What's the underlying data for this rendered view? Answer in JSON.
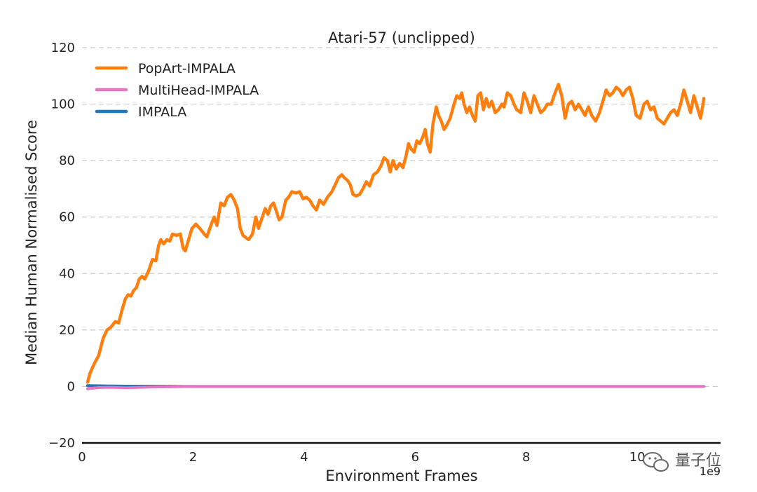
{
  "chart_data": {
    "type": "line",
    "title": "Atari-57 (unclipped)",
    "xlabel": "Environment Frames",
    "ylabel": "Median Human Normalised Score",
    "x_offset_label": "1e9",
    "xlim": [
      0,
      11.5
    ],
    "ylim": [
      -20,
      120
    ],
    "x_ticks": [
      0,
      2,
      4,
      6,
      8,
      10
    ],
    "x_tick_labels": [
      "0",
      "2",
      "4",
      "6",
      "8",
      "10"
    ],
    "y_ticks": [
      -20,
      0,
      20,
      40,
      60,
      80,
      100,
      120
    ],
    "y_tick_labels": [
      "−20",
      "0",
      "20",
      "40",
      "60",
      "80",
      "100",
      "120"
    ],
    "grid": "horizontal dashed",
    "legend_position": "top-left",
    "series": [
      {
        "name": "PopArt-IMPALA",
        "color": "#ff7f0e",
        "points": [
          [
            0.1,
            1.5
          ],
          [
            0.15,
            5
          ],
          [
            0.22,
            8
          ],
          [
            0.3,
            11
          ],
          [
            0.38,
            17
          ],
          [
            0.45,
            20
          ],
          [
            0.52,
            21
          ],
          [
            0.6,
            23
          ],
          [
            0.66,
            22.5
          ],
          [
            0.72,
            27
          ],
          [
            0.78,
            31
          ],
          [
            0.83,
            32.5
          ],
          [
            0.88,
            32
          ],
          [
            0.93,
            34
          ],
          [
            0.98,
            35
          ],
          [
            1.03,
            38
          ],
          [
            1.08,
            39
          ],
          [
            1.13,
            38
          ],
          [
            1.2,
            41
          ],
          [
            1.27,
            45
          ],
          [
            1.33,
            44.5
          ],
          [
            1.38,
            50
          ],
          [
            1.42,
            52
          ],
          [
            1.47,
            50.5
          ],
          [
            1.53,
            52
          ],
          [
            1.58,
            51.5
          ],
          [
            1.63,
            54
          ],
          [
            1.7,
            53.5
          ],
          [
            1.77,
            54
          ],
          [
            1.82,
            49
          ],
          [
            1.86,
            48
          ],
          [
            1.92,
            52
          ],
          [
            1.98,
            56
          ],
          [
            2.05,
            57.5
          ],
          [
            2.12,
            56
          ],
          [
            2.2,
            54
          ],
          [
            2.25,
            53
          ],
          [
            2.32,
            57
          ],
          [
            2.38,
            60
          ],
          [
            2.43,
            57
          ],
          [
            2.5,
            65
          ],
          [
            2.56,
            64
          ],
          [
            2.62,
            67
          ],
          [
            2.68,
            68
          ],
          [
            2.74,
            66
          ],
          [
            2.8,
            63
          ],
          [
            2.85,
            56
          ],
          [
            2.9,
            53.5
          ],
          [
            3.0,
            52
          ],
          [
            3.07,
            54
          ],
          [
            3.13,
            60
          ],
          [
            3.18,
            56
          ],
          [
            3.23,
            59
          ],
          [
            3.3,
            63
          ],
          [
            3.35,
            61
          ],
          [
            3.4,
            64
          ],
          [
            3.45,
            65
          ],
          [
            3.5,
            62
          ],
          [
            3.55,
            59
          ],
          [
            3.6,
            60
          ],
          [
            3.67,
            66
          ],
          [
            3.72,
            67
          ],
          [
            3.78,
            69
          ],
          [
            3.85,
            68.5
          ],
          [
            3.92,
            69
          ],
          [
            3.98,
            66.5
          ],
          [
            4.04,
            67
          ],
          [
            4.1,
            66
          ],
          [
            4.16,
            64
          ],
          [
            4.22,
            62.5
          ],
          [
            4.28,
            66
          ],
          [
            4.35,
            64.5
          ],
          [
            4.42,
            67
          ],
          [
            4.5,
            69
          ],
          [
            4.55,
            71
          ],
          [
            4.62,
            74
          ],
          [
            4.68,
            75
          ],
          [
            4.72,
            74
          ],
          [
            4.78,
            73
          ],
          [
            4.83,
            71.5
          ],
          [
            4.88,
            68
          ],
          [
            4.94,
            67.5
          ],
          [
            5.0,
            68
          ],
          [
            5.06,
            70
          ],
          [
            5.12,
            72.5
          ],
          [
            5.18,
            71
          ],
          [
            5.25,
            75
          ],
          [
            5.32,
            76
          ],
          [
            5.38,
            78
          ],
          [
            5.44,
            81
          ],
          [
            5.5,
            80
          ],
          [
            5.55,
            76
          ],
          [
            5.6,
            80
          ],
          [
            5.66,
            77
          ],
          [
            5.72,
            79
          ],
          [
            5.78,
            77.5
          ],
          [
            5.84,
            82
          ],
          [
            5.88,
            86
          ],
          [
            5.93,
            84
          ],
          [
            5.98,
            83
          ],
          [
            6.03,
            87
          ],
          [
            6.08,
            86
          ],
          [
            6.13,
            88
          ],
          [
            6.18,
            91
          ],
          [
            6.22,
            86
          ],
          [
            6.27,
            83
          ],
          [
            6.32,
            93
          ],
          [
            6.38,
            99
          ],
          [
            6.42,
            96
          ],
          [
            6.47,
            94
          ],
          [
            6.52,
            91
          ],
          [
            6.58,
            93
          ],
          [
            6.63,
            95
          ],
          [
            6.7,
            100
          ],
          [
            6.75,
            103
          ],
          [
            6.8,
            102
          ],
          [
            6.84,
            104
          ],
          [
            6.88,
            100
          ],
          [
            6.93,
            97
          ],
          [
            6.98,
            99
          ],
          [
            7.03,
            96
          ],
          [
            7.08,
            94
          ],
          [
            7.13,
            103
          ],
          [
            7.18,
            104
          ],
          [
            7.23,
            98
          ],
          [
            7.28,
            102
          ],
          [
            7.33,
            99
          ],
          [
            7.38,
            101
          ],
          [
            7.44,
            97
          ],
          [
            7.5,
            98
          ],
          [
            7.56,
            100
          ],
          [
            7.6,
            99
          ],
          [
            7.66,
            104
          ],
          [
            7.72,
            103
          ],
          [
            7.78,
            100
          ],
          [
            7.83,
            98
          ],
          [
            7.9,
            97
          ],
          [
            7.96,
            104
          ],
          [
            8.02,
            101
          ],
          [
            8.08,
            97
          ],
          [
            8.14,
            103
          ],
          [
            8.2,
            100
          ],
          [
            8.26,
            97
          ],
          [
            8.32,
            98
          ],
          [
            8.38,
            100
          ],
          [
            8.45,
            100
          ],
          [
            8.52,
            104
          ],
          [
            8.58,
            107
          ],
          [
            8.64,
            103
          ],
          [
            8.7,
            95
          ],
          [
            8.76,
            100
          ],
          [
            8.82,
            101
          ],
          [
            8.88,
            98
          ],
          [
            8.94,
            100
          ],
          [
            9.0,
            98
          ],
          [
            9.06,
            96
          ],
          [
            9.12,
            99
          ],
          [
            9.18,
            96
          ],
          [
            9.25,
            94
          ],
          [
            9.32,
            97
          ],
          [
            9.38,
            101
          ],
          [
            9.44,
            105
          ],
          [
            9.5,
            103
          ],
          [
            9.56,
            104
          ],
          [
            9.62,
            106
          ],
          [
            9.68,
            105
          ],
          [
            9.74,
            103
          ],
          [
            9.8,
            105
          ],
          [
            9.86,
            106
          ],
          [
            9.92,
            102
          ],
          [
            9.98,
            96
          ],
          [
            10.05,
            95
          ],
          [
            10.12,
            100
          ],
          [
            10.18,
            101
          ],
          [
            10.24,
            98
          ],
          [
            10.3,
            99
          ],
          [
            10.36,
            95
          ],
          [
            10.42,
            94
          ],
          [
            10.48,
            93
          ],
          [
            10.54,
            95
          ],
          [
            10.6,
            97
          ],
          [
            10.66,
            98
          ],
          [
            10.72,
            96
          ],
          [
            10.78,
            100
          ],
          [
            10.84,
            105
          ],
          [
            10.9,
            101
          ],
          [
            10.96,
            97
          ],
          [
            11.02,
            103
          ],
          [
            11.08,
            99
          ],
          [
            11.14,
            95
          ],
          [
            11.2,
            102
          ]
        ]
      },
      {
        "name": "MultiHead-IMPALA",
        "color": "#e377c2",
        "points": [
          [
            0.1,
            -0.8
          ],
          [
            0.3,
            -0.4
          ],
          [
            0.5,
            -0.3
          ],
          [
            0.8,
            -0.5
          ],
          [
            1.2,
            -0.2
          ],
          [
            2.0,
            0.0
          ],
          [
            4.0,
            0.0
          ],
          [
            6.0,
            0.0
          ],
          [
            8.0,
            0.0
          ],
          [
            10.0,
            0.0
          ],
          [
            11.2,
            0.0
          ]
        ]
      },
      {
        "name": "IMPALA",
        "color": "#1f77b4",
        "points": [
          [
            0.1,
            0.3
          ],
          [
            0.4,
            0.2
          ],
          [
            0.8,
            0.1
          ],
          [
            1.2,
            0.1
          ],
          [
            2.0,
            0.0
          ],
          [
            4.0,
            0.0
          ],
          [
            6.0,
            0.0
          ],
          [
            8.0,
            0.0
          ],
          [
            10.0,
            0.0
          ],
          [
            11.2,
            0.0
          ]
        ]
      }
    ]
  },
  "watermark": {
    "text": "量子位",
    "icon": "wechat-icon"
  }
}
